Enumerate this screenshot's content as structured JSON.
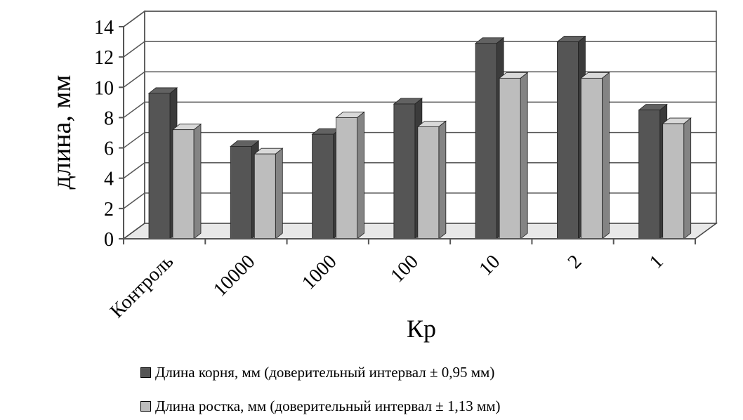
{
  "chart_data": {
    "type": "bar",
    "style": "3d-clustered-column",
    "categories": [
      "Контроль",
      "10000",
      "1000",
      "100",
      "10",
      "2",
      "1"
    ],
    "series": [
      {
        "name": "Длина корня, мм (доверительный интервал ± 0,95 мм)",
        "values": [
          9.6,
          6.1,
          6.9,
          8.9,
          12.9,
          13.0,
          8.5
        ],
        "color": "#555555"
      },
      {
        "name": "Длина ростка, мм (доверительный интервал ± 1,13 мм)",
        "values": [
          7.2,
          5.6,
          8.0,
          7.4,
          10.6,
          10.6,
          7.6
        ],
        "color": "#bdbdbd"
      }
    ],
    "xlabel": "Кр",
    "ylabel": "длина,  мм",
    "ylim": [
      0,
      14
    ],
    "yticks": [
      "0",
      "2",
      "4",
      "6",
      "8",
      "10",
      "12",
      "14"
    ],
    "grid": true,
    "legend_position": "bottom"
  }
}
